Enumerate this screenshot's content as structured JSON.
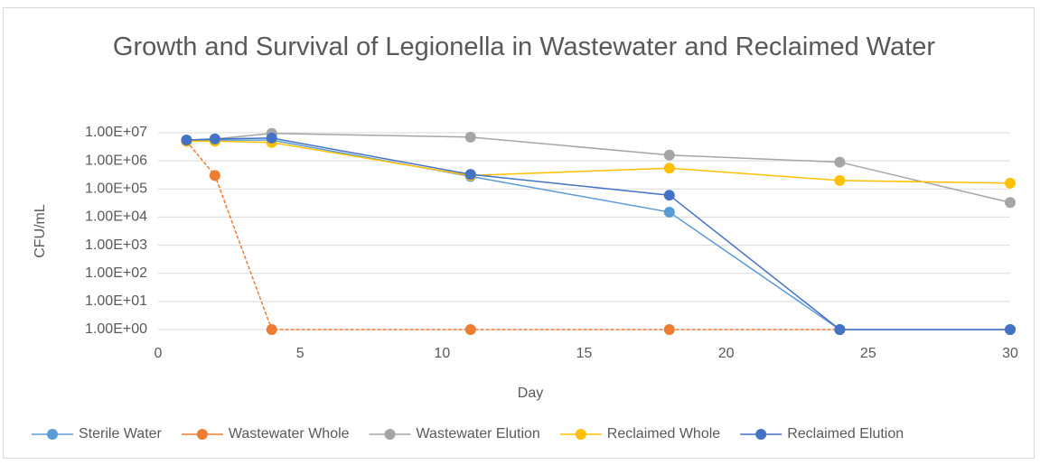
{
  "chart_data": {
    "type": "line",
    "title": "Growth and Survival of Legionella in Wastewater and Reclaimed Water",
    "x_label": "Day",
    "y_label": "CFU/mL",
    "log_scale_y": true,
    "grid": true,
    "legend": "bottom",
    "x": [
      1,
      2,
      4,
      11,
      18,
      24,
      30
    ],
    "series": [
      {
        "name": "Sterile Water",
        "color": "#5b9bd5",
        "values": [
          5000000,
          5500000,
          5500000,
          280000,
          15000,
          1,
          1
        ]
      },
      {
        "name": "Wastewater Whole",
        "color": "#ed7d31",
        "values": [
          5000000,
          300000,
          1,
          1,
          1,
          1,
          null
        ]
      },
      {
        "name": "Wastewater Elution",
        "color": "#a5a5a5",
        "values": [
          5500000,
          6000000,
          9500000,
          7000000,
          1600000,
          900000,
          33000
        ]
      },
      {
        "name": "Reclaimed Whole",
        "color": "#ffc000",
        "values": [
          5000000,
          5000000,
          4500000,
          300000,
          550000,
          200000,
          160000
        ]
      },
      {
        "name": "Reclaimed Elution",
        "color": "#4472c4",
        "values": [
          5500000,
          6000000,
          6500000,
          330000,
          60000,
          1,
          1
        ]
      }
    ],
    "xlim": [
      0,
      30
    ],
    "xticks": [
      0,
      5,
      10,
      15,
      20,
      25,
      30
    ],
    "ylim": [
      1,
      10000000
    ],
    "yticks": [
      {
        "value": 1,
        "label": "1.00E+00"
      },
      {
        "value": 10,
        "label": "1.00E+01"
      },
      {
        "value": 100,
        "label": "1.00E+02"
      },
      {
        "value": 1000,
        "label": "1.00E+03"
      },
      {
        "value": 10000,
        "label": "1.00E+04"
      },
      {
        "value": 100000,
        "label": "1.00E+05"
      },
      {
        "value": 1000000,
        "label": "1.00E+06"
      },
      {
        "value": 10000000,
        "label": "1.00E+07"
      }
    ]
  }
}
